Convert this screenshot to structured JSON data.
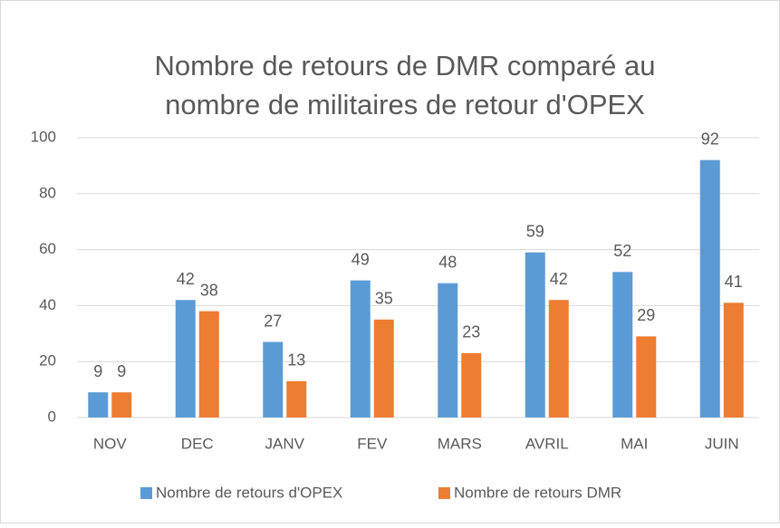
{
  "chart_data": {
    "type": "bar",
    "title": [
      "Nombre de retours de DMR comparé au",
      "nombre de militaires de retour d'OPEX"
    ],
    "categories": [
      "NOV",
      "DEC",
      "JANV",
      "FEV",
      "MARS",
      "AVRIL",
      "MAI",
      "JUIN"
    ],
    "series": [
      {
        "name": "Nombre de retours d'OPEX",
        "color": "#5b9bd5",
        "values": [
          9,
          42,
          27,
          49,
          48,
          59,
          52,
          92
        ]
      },
      {
        "name": "Nombre de retours DMR",
        "color": "#ed7d31",
        "values": [
          9,
          38,
          13,
          35,
          23,
          42,
          29,
          41
        ]
      }
    ],
    "ylim": [
      0,
      100
    ],
    "yticks": [
      0,
      20,
      40,
      60,
      80,
      100
    ],
    "grid": true,
    "legend": "bottom"
  }
}
